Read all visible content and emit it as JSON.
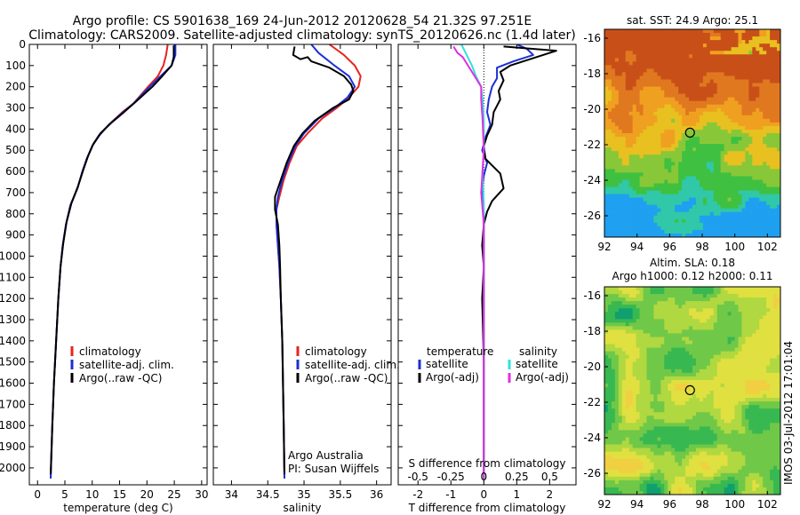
{
  "figure": {
    "title_line1": "Argo profile: CS 5901638_169 24-Jun-2012 20120628_54 21.32S 97.251E",
    "title_line2": "Climatology: CARS2009. Satellite-adjusted climatology: synTS_20120626.nc (1.4d later)",
    "side_stamp": "IMOS 03-Jul-2012 17:01:04",
    "credit_line1": "Argo Australia",
    "credit_line2": "PI: Susan Wijffels"
  },
  "colors": {
    "climatology": "#e8231e",
    "satellite": "#1c2fd6",
    "argo": "#000000",
    "satellite_salinity": "#2fe0e0",
    "argo_salinity_adj": "#e030e0"
  },
  "chart_data": [
    {
      "type": "line",
      "xlabel": "temperature (deg C)",
      "xlim": [
        -1.5,
        31
      ],
      "xticks": [
        0,
        5,
        10,
        15,
        20,
        25,
        30
      ],
      "ylim": [
        2080,
        0
      ],
      "yticks": [
        0,
        100,
        200,
        300,
        400,
        500,
        600,
        700,
        800,
        900,
        1000,
        1100,
        1200,
        1300,
        1400,
        1500,
        1600,
        1700,
        1800,
        1900,
        2000
      ],
      "legend": [
        "climatology",
        "satellite-adj. clim.",
        "Argo(..raw -QC)"
      ],
      "series": [
        {
          "name": "climatology",
          "color_key": "climatology",
          "points": [
            [
              23.8,
              0
            ],
            [
              23.5,
              50
            ],
            [
              23.0,
              100
            ],
            [
              22.0,
              150
            ],
            [
              20.2,
              200
            ],
            [
              17.5,
              280
            ],
            [
              15.5,
              320
            ],
            [
              13.0,
              380
            ],
            [
              11.2,
              430
            ],
            [
              10.0,
              480
            ],
            [
              9.0,
              540
            ],
            [
              8.2,
              600
            ],
            [
              7.3,
              680
            ],
            [
              6.0,
              760
            ],
            [
              5.2,
              850
            ],
            [
              4.6,
              950
            ],
            [
              4.2,
              1050
            ],
            [
              3.8,
              1200
            ],
            [
              3.4,
              1400
            ],
            [
              3.0,
              1600
            ],
            [
              2.7,
              1800
            ],
            [
              2.4,
              2050
            ]
          ]
        },
        {
          "name": "satellite-adj. clim.",
          "color_key": "satellite",
          "points": [
            [
              25.2,
              0
            ],
            [
              25.2,
              50
            ],
            [
              24.5,
              100
            ],
            [
              22.5,
              150
            ],
            [
              20.5,
              200
            ],
            [
              17.5,
              280
            ],
            [
              15.2,
              330
            ],
            [
              13.0,
              380
            ],
            [
              11.3,
              430
            ],
            [
              10.0,
              480
            ],
            [
              9.0,
              540
            ],
            [
              8.2,
              600
            ],
            [
              7.3,
              680
            ],
            [
              6.0,
              760
            ],
            [
              5.2,
              850
            ],
            [
              4.6,
              950
            ],
            [
              4.2,
              1050
            ],
            [
              3.8,
              1200
            ],
            [
              3.4,
              1400
            ],
            [
              3.0,
              1600
            ],
            [
              2.7,
              1800
            ],
            [
              2.4,
              2050
            ]
          ]
        },
        {
          "name": "Argo(..raw -QC)",
          "color_key": "argo",
          "points": [
            [
              24.9,
              5
            ],
            [
              24.9,
              60
            ],
            [
              24.5,
              100
            ],
            [
              22.8,
              150
            ],
            [
              21.0,
              200
            ],
            [
              18.0,
              270
            ],
            [
              15.8,
              320
            ],
            [
              13.5,
              370
            ],
            [
              11.5,
              420
            ],
            [
              10.2,
              470
            ],
            [
              9.2,
              530
            ],
            [
              8.4,
              590
            ],
            [
              7.4,
              670
            ],
            [
              6.2,
              750
            ],
            [
              5.3,
              840
            ],
            [
              4.7,
              940
            ],
            [
              4.2,
              1050
            ],
            [
              3.8,
              1200
            ],
            [
              3.4,
              1400
            ],
            [
              3.0,
              1600
            ],
            [
              2.7,
              1800
            ],
            [
              2.4,
              2030
            ]
          ]
        }
      ]
    },
    {
      "type": "line",
      "xlabel": "salinity",
      "xlim": [
        33.75,
        36.2
      ],
      "xticks": [
        34,
        34.5,
        35,
        35.5,
        36
      ],
      "xticklabels": [
        "34",
        "34.5",
        "35",
        "35.5",
        "36"
      ],
      "ylim": [
        2080,
        0
      ],
      "legend": [
        "climatology",
        "satellite-adj. clim.",
        "Argo(..raw -QC)"
      ],
      "series": [
        {
          "name": "climatology",
          "color_key": "climatology",
          "points": [
            [
              35.35,
              0
            ],
            [
              35.55,
              50
            ],
            [
              35.7,
              100
            ],
            [
              35.78,
              150
            ],
            [
              35.75,
              200
            ],
            [
              35.62,
              250
            ],
            [
              35.45,
              300
            ],
            [
              35.25,
              350
            ],
            [
              35.05,
              420
            ],
            [
              34.9,
              480
            ],
            [
              34.8,
              560
            ],
            [
              34.72,
              640
            ],
            [
              34.66,
              720
            ],
            [
              34.62,
              780
            ],
            [
              34.62,
              850
            ],
            [
              34.64,
              950
            ],
            [
              34.66,
              1050
            ],
            [
              34.68,
              1200
            ],
            [
              34.7,
              1400
            ],
            [
              34.71,
              1600
            ],
            [
              34.72,
              1800
            ],
            [
              34.73,
              2050
            ]
          ]
        },
        {
          "name": "satellite-adj. clim.",
          "color_key": "satellite",
          "points": [
            [
              35.1,
              0
            ],
            [
              35.2,
              40
            ],
            [
              35.42,
              100
            ],
            [
              35.62,
              150
            ],
            [
              35.7,
              200
            ],
            [
              35.6,
              250
            ],
            [
              35.42,
              300
            ],
            [
              35.2,
              350
            ],
            [
              35.0,
              420
            ],
            [
              34.88,
              480
            ],
            [
              34.78,
              560
            ],
            [
              34.7,
              640
            ],
            [
              34.64,
              720
            ],
            [
              34.62,
              780
            ],
            [
              34.62,
              850
            ],
            [
              34.64,
              950
            ],
            [
              34.66,
              1050
            ],
            [
              34.68,
              1200
            ],
            [
              34.7,
              1400
            ],
            [
              34.71,
              1600
            ],
            [
              34.72,
              1800
            ],
            [
              34.73,
              2050
            ]
          ]
        },
        {
          "name": "Argo(..raw -QC)",
          "color_key": "argo",
          "points": [
            [
              34.87,
              10
            ],
            [
              34.85,
              50
            ],
            [
              34.95,
              70
            ],
            [
              35.05,
              60
            ],
            [
              35.1,
              80
            ],
            [
              35.35,
              110
            ],
            [
              35.55,
              150
            ],
            [
              35.65,
              190
            ],
            [
              35.68,
              220
            ],
            [
              35.62,
              260
            ],
            [
              35.4,
              300
            ],
            [
              35.15,
              360
            ],
            [
              34.98,
              420
            ],
            [
              34.86,
              480
            ],
            [
              34.76,
              560
            ],
            [
              34.68,
              640
            ],
            [
              34.6,
              720
            ],
            [
              34.6,
              780
            ],
            [
              34.64,
              850
            ],
            [
              34.66,
              950
            ],
            [
              34.67,
              1050
            ],
            [
              34.68,
              1200
            ],
            [
              34.7,
              1400
            ],
            [
              34.71,
              1600
            ],
            [
              34.72,
              1800
            ],
            [
              34.73,
              2030
            ]
          ]
        }
      ]
    },
    {
      "type": "line",
      "xlabel": "T difference from climatology",
      "top_axis_label": "S difference from climatology",
      "xlim": [
        -2.6,
        2.8
      ],
      "xticks": [
        -2,
        -1,
        0,
        1,
        2
      ],
      "top_ticks": [
        -0.5,
        -0.25,
        0,
        0.25,
        0.5
      ],
      "top_ticklabels": [
        "-0.5",
        "-0.25",
        "0",
        "0.25",
        "0.5"
      ],
      "s_scale": 4,
      "ylim": [
        2080,
        0
      ],
      "legend_headers": [
        "temperature",
        "salinity"
      ],
      "legend": [
        "satellite",
        "Argo(-adj)",
        "satellite",
        "Argo(-adj)"
      ],
      "series": [
        {
          "name": "satellite",
          "color_key": "satellite",
          "quantity": "T",
          "points": [
            [
              1.0,
              0
            ],
            [
              1.3,
              20
            ],
            [
              1.5,
              50
            ],
            [
              0.9,
              80
            ],
            [
              0.4,
              110
            ],
            [
              0.4,
              160
            ],
            [
              0.25,
              200
            ],
            [
              0.15,
              260
            ],
            [
              0.1,
              320
            ],
            [
              0.2,
              380
            ],
            [
              0.05,
              440
            ],
            [
              -0.05,
              500
            ],
            [
              0.1,
              560
            ],
            [
              0.0,
              620
            ],
            [
              -0.05,
              700
            ],
            [
              0.0,
              800
            ],
            [
              0.0,
              1000
            ],
            [
              0.0,
              1500
            ],
            [
              0.0,
              2050
            ]
          ]
        },
        {
          "name": "Argo(-adj)",
          "color_key": "argo",
          "quantity": "T",
          "points": [
            [
              0.6,
              10
            ],
            [
              2.2,
              30
            ],
            [
              1.2,
              80
            ],
            [
              0.8,
              100
            ],
            [
              0.5,
              130
            ],
            [
              0.6,
              170
            ],
            [
              0.45,
              220
            ],
            [
              0.5,
              260
            ],
            [
              0.3,
              320
            ],
            [
              0.25,
              380
            ],
            [
              0.1,
              430
            ],
            [
              0.0,
              480
            ],
            [
              0.05,
              540
            ],
            [
              0.5,
              610
            ],
            [
              0.6,
              680
            ],
            [
              0.25,
              740
            ],
            [
              0.1,
              790
            ],
            [
              0.0,
              850
            ],
            [
              -0.05,
              950
            ],
            [
              0.0,
              1050
            ],
            [
              -0.05,
              1200
            ],
            [
              0.0,
              1500
            ],
            [
              0.0,
              2030
            ]
          ]
        },
        {
          "name": "satellite",
          "color_key": "satellite_salinity",
          "quantity": "S",
          "points": [
            [
              -0.17,
              0
            ],
            [
              -0.13,
              50
            ],
            [
              -0.09,
              100
            ],
            [
              -0.06,
              150
            ],
            [
              -0.02,
              200
            ],
            [
              -0.01,
              260
            ],
            [
              0.0,
              350
            ],
            [
              0.0,
              500
            ],
            [
              -0.01,
              600
            ],
            [
              0.0,
              750
            ],
            [
              0.0,
              1000
            ],
            [
              0.0,
              1500
            ],
            [
              0.0,
              2050
            ]
          ]
        },
        {
          "name": "Argo(-adj)",
          "color_key": "argo_salinity_adj",
          "quantity": "S",
          "points": [
            [
              -0.23,
              10
            ],
            [
              -0.2,
              40
            ],
            [
              -0.16,
              60
            ],
            [
              -0.12,
              100
            ],
            [
              -0.07,
              150
            ],
            [
              -0.02,
              200
            ],
            [
              -0.02,
              260
            ],
            [
              -0.01,
              350
            ],
            [
              0.0,
              500
            ],
            [
              -0.02,
              700
            ],
            [
              0.0,
              850
            ],
            [
              0.0,
              1000
            ],
            [
              0.0,
              1500
            ],
            [
              0.0,
              2050
            ]
          ]
        }
      ]
    },
    {
      "type": "heatmap",
      "title": "sat. SST: 24.9  Argo: 25.1",
      "xlim": [
        92,
        102.8
      ],
      "ylim": [
        -27.2,
        -15.5
      ],
      "xticks": [
        92,
        94,
        96,
        98,
        100,
        102
      ],
      "yticks": [
        -16,
        -18,
        -20,
        -22,
        -24,
        -26
      ],
      "marker": {
        "lon": 97.25,
        "lat": -21.32
      },
      "palette": [
        "#1fa0f0",
        "#30c8a8",
        "#40c040",
        "#88c838",
        "#e8c020",
        "#f0a020",
        "#e07820",
        "#c85018"
      ]
    },
    {
      "type": "heatmap",
      "title_line1": "Altim. SLA: 0.18",
      "title_line2": "Argo h1000: 0.12 h2000: 0.11",
      "xlim": [
        92,
        102.8
      ],
      "ylim": [
        -27.2,
        -15.5
      ],
      "xticks": [
        92,
        94,
        96,
        98,
        100,
        102
      ],
      "yticks": [
        -16,
        -18,
        -20,
        -22,
        -24,
        -26
      ],
      "marker": {
        "lon": 97.25,
        "lat": -21.32
      },
      "palette": [
        "#10a070",
        "#38b850",
        "#70c848",
        "#b0d840",
        "#e0e040",
        "#f0d040"
      ]
    }
  ]
}
